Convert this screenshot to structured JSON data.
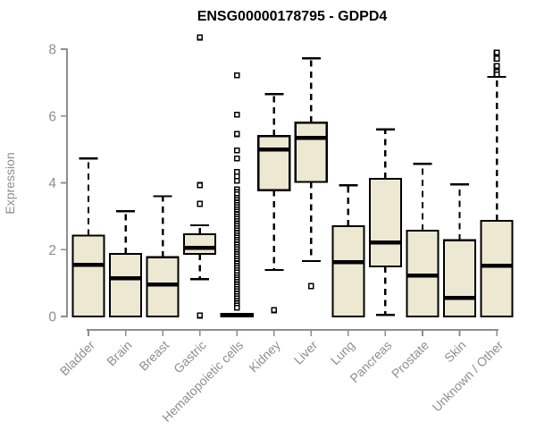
{
  "chart_data": {
    "type": "boxplot",
    "title": "ENSG00000178795 - GDPD4",
    "ylabel": "Expression",
    "xlabel": "",
    "ylim": [
      0,
      8
    ],
    "yticks": [
      0,
      2,
      4,
      6,
      8
    ],
    "grid": false,
    "legend_position": "none",
    "colors": {
      "box_fill": "#EDE8D2",
      "box_stroke": "#000000",
      "median": "#000000",
      "axis": "#8E8E8E",
      "title": "#000000",
      "background": "#FFFFFF"
    },
    "categories": [
      "Bladder",
      "Brain",
      "Breast",
      "Gastric",
      "Hematopoietic cells",
      "Kidney",
      "Liver",
      "Lung",
      "Pancreas",
      "Prostate",
      "Skin",
      "Unknown / Other"
    ],
    "series": [
      {
        "name": "Bladder",
        "whisker_low": 0,
        "q1": 0,
        "median": 1.55,
        "q3": 2.42,
        "whisker_high": 4.73,
        "outliers": []
      },
      {
        "name": "Brain",
        "whisker_low": 0,
        "q1": 0,
        "median": 1.15,
        "q3": 1.87,
        "whisker_high": 3.15,
        "outliers": []
      },
      {
        "name": "Breast",
        "whisker_low": 0,
        "q1": 0,
        "median": 0.95,
        "q3": 1.77,
        "whisker_high": 3.6,
        "outliers": []
      },
      {
        "name": "Gastric",
        "whisker_low": 1.12,
        "q1": 1.87,
        "median": 2.06,
        "q3": 2.46,
        "whisker_high": 2.73,
        "outliers": [
          8.35,
          3.93,
          3.37,
          0.03
        ]
      },
      {
        "name": "Hematopoietic cells",
        "whisker_low": 0,
        "q1": 0,
        "median": 0.04,
        "q3": 0.08,
        "whisker_high": 0.08,
        "outliers": [
          7.22,
          6.04,
          5.46,
          4.97,
          4.73,
          4.33,
          4.19,
          4.06,
          3.8,
          3.72,
          3.66,
          3.55,
          3.48,
          3.41,
          3.34,
          3.27,
          3.2,
          3.13,
          3.06,
          2.99,
          2.92,
          2.85,
          2.78,
          2.71,
          2.64,
          2.57,
          2.5,
          2.43,
          2.36,
          2.29,
          2.22,
          2.15,
          2.08,
          2.01,
          1.94,
          1.87,
          1.8,
          1.73,
          1.66,
          1.59,
          1.52,
          1.45,
          1.38,
          1.31,
          1.24,
          1.17,
          1.1,
          1.03,
          0.96,
          0.89,
          0.82,
          0.75,
          0.68,
          0.61,
          0.54,
          0.47,
          0.4,
          0.33,
          0.26
        ]
      },
      {
        "name": "Kidney",
        "whisker_low": 1.39,
        "q1": 3.78,
        "median": 5.0,
        "q3": 5.4,
        "whisker_high": 6.66,
        "outliers": [
          0.19
        ]
      },
      {
        "name": "Liver",
        "whisker_low": 1.66,
        "q1": 4.03,
        "median": 5.35,
        "q3": 5.8,
        "whisker_high": 7.73,
        "outliers": [
          0.91
        ]
      },
      {
        "name": "Lung",
        "whisker_low": 0,
        "q1": 0,
        "median": 1.63,
        "q3": 2.7,
        "whisker_high": 3.93,
        "outliers": []
      },
      {
        "name": "Pancreas",
        "whisker_low": 0.05,
        "q1": 1.5,
        "median": 2.22,
        "q3": 4.12,
        "whisker_high": 5.6,
        "outliers": []
      },
      {
        "name": "Prostate",
        "whisker_low": 0,
        "q1": 0,
        "median": 1.23,
        "q3": 2.57,
        "whisker_high": 4.57,
        "outliers": []
      },
      {
        "name": "Skin",
        "whisker_low": 0,
        "q1": 0,
        "median": 0.56,
        "q3": 2.28,
        "whisker_high": 3.95,
        "outliers": []
      },
      {
        "name": "Unknown / Other",
        "whisker_low": 0,
        "q1": 0,
        "median": 1.52,
        "q3": 2.86,
        "whisker_high": 7.17,
        "outliers": [
          7.9,
          7.72,
          7.5,
          7.32,
          7.24
        ]
      }
    ]
  }
}
